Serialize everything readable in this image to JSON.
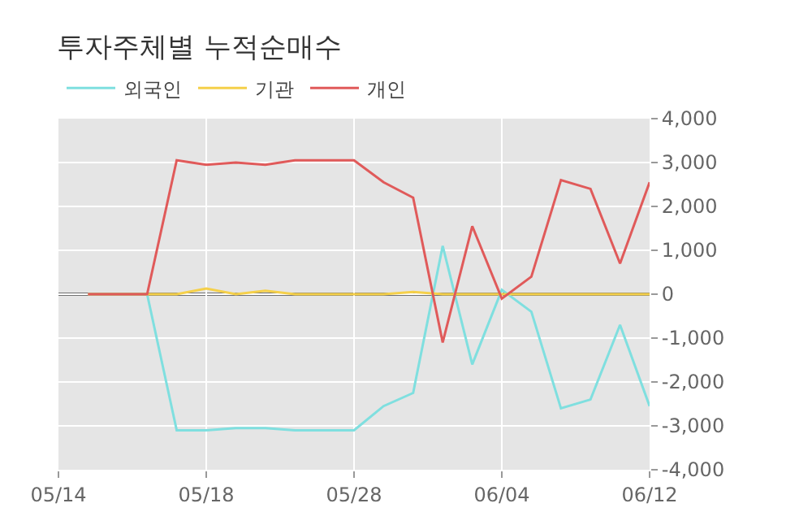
{
  "chart_data": {
    "type": "line",
    "title": "투자주체별 누적순매수",
    "categories": [
      "05/14",
      null,
      null,
      null,
      null,
      "05/18",
      null,
      null,
      null,
      null,
      "05/28",
      null,
      null,
      null,
      null,
      "06/04",
      null,
      null,
      null,
      null,
      "06/12"
    ],
    "series": [
      {
        "name": "외국인",
        "color": "#7fdfdf",
        "values": [
          null,
          0,
          0,
          0,
          -3100,
          -3100,
          -3050,
          -3050,
          -3100,
          -3100,
          -3100,
          -2550,
          -2250,
          1100,
          -1600,
          100,
          -400,
          -2600,
          -2400,
          -700,
          -2550
        ]
      },
      {
        "name": "기관",
        "color": "#f5d04a",
        "values": [
          null,
          0,
          0,
          0,
          0,
          130,
          0,
          80,
          0,
          0,
          0,
          0,
          50,
          0,
          0,
          0,
          0,
          0,
          0,
          0,
          0
        ]
      },
      {
        "name": "개인",
        "color": "#e05a5a",
        "values": [
          null,
          0,
          0,
          0,
          3050,
          2950,
          3000,
          2950,
          3050,
          3050,
          3050,
          2550,
          2200,
          -1100,
          1550,
          -100,
          400,
          2600,
          2400,
          700,
          2550
        ]
      }
    ],
    "ylim": [
      -4000,
      4000
    ],
    "yticks": [
      {
        "value": -4000,
        "label": "-4,000"
      },
      {
        "value": -3000,
        "label": "-3,000"
      },
      {
        "value": -2000,
        "label": "-2,000"
      },
      {
        "value": -1000,
        "label": "-1,000"
      },
      0,
      {
        "value": 1000,
        "label": "1,000"
      },
      {
        "value": 2000,
        "label": "2,000"
      },
      {
        "value": 3000,
        "label": "3,000"
      },
      {
        "value": 4000,
        "label": "4,000"
      }
    ],
    "ref_lines": [
      {
        "axis": "y",
        "value": 0,
        "color": "#707070"
      }
    ],
    "grid": true,
    "legend": "top left",
    "marker": "none",
    "line_style": "solid"
  }
}
